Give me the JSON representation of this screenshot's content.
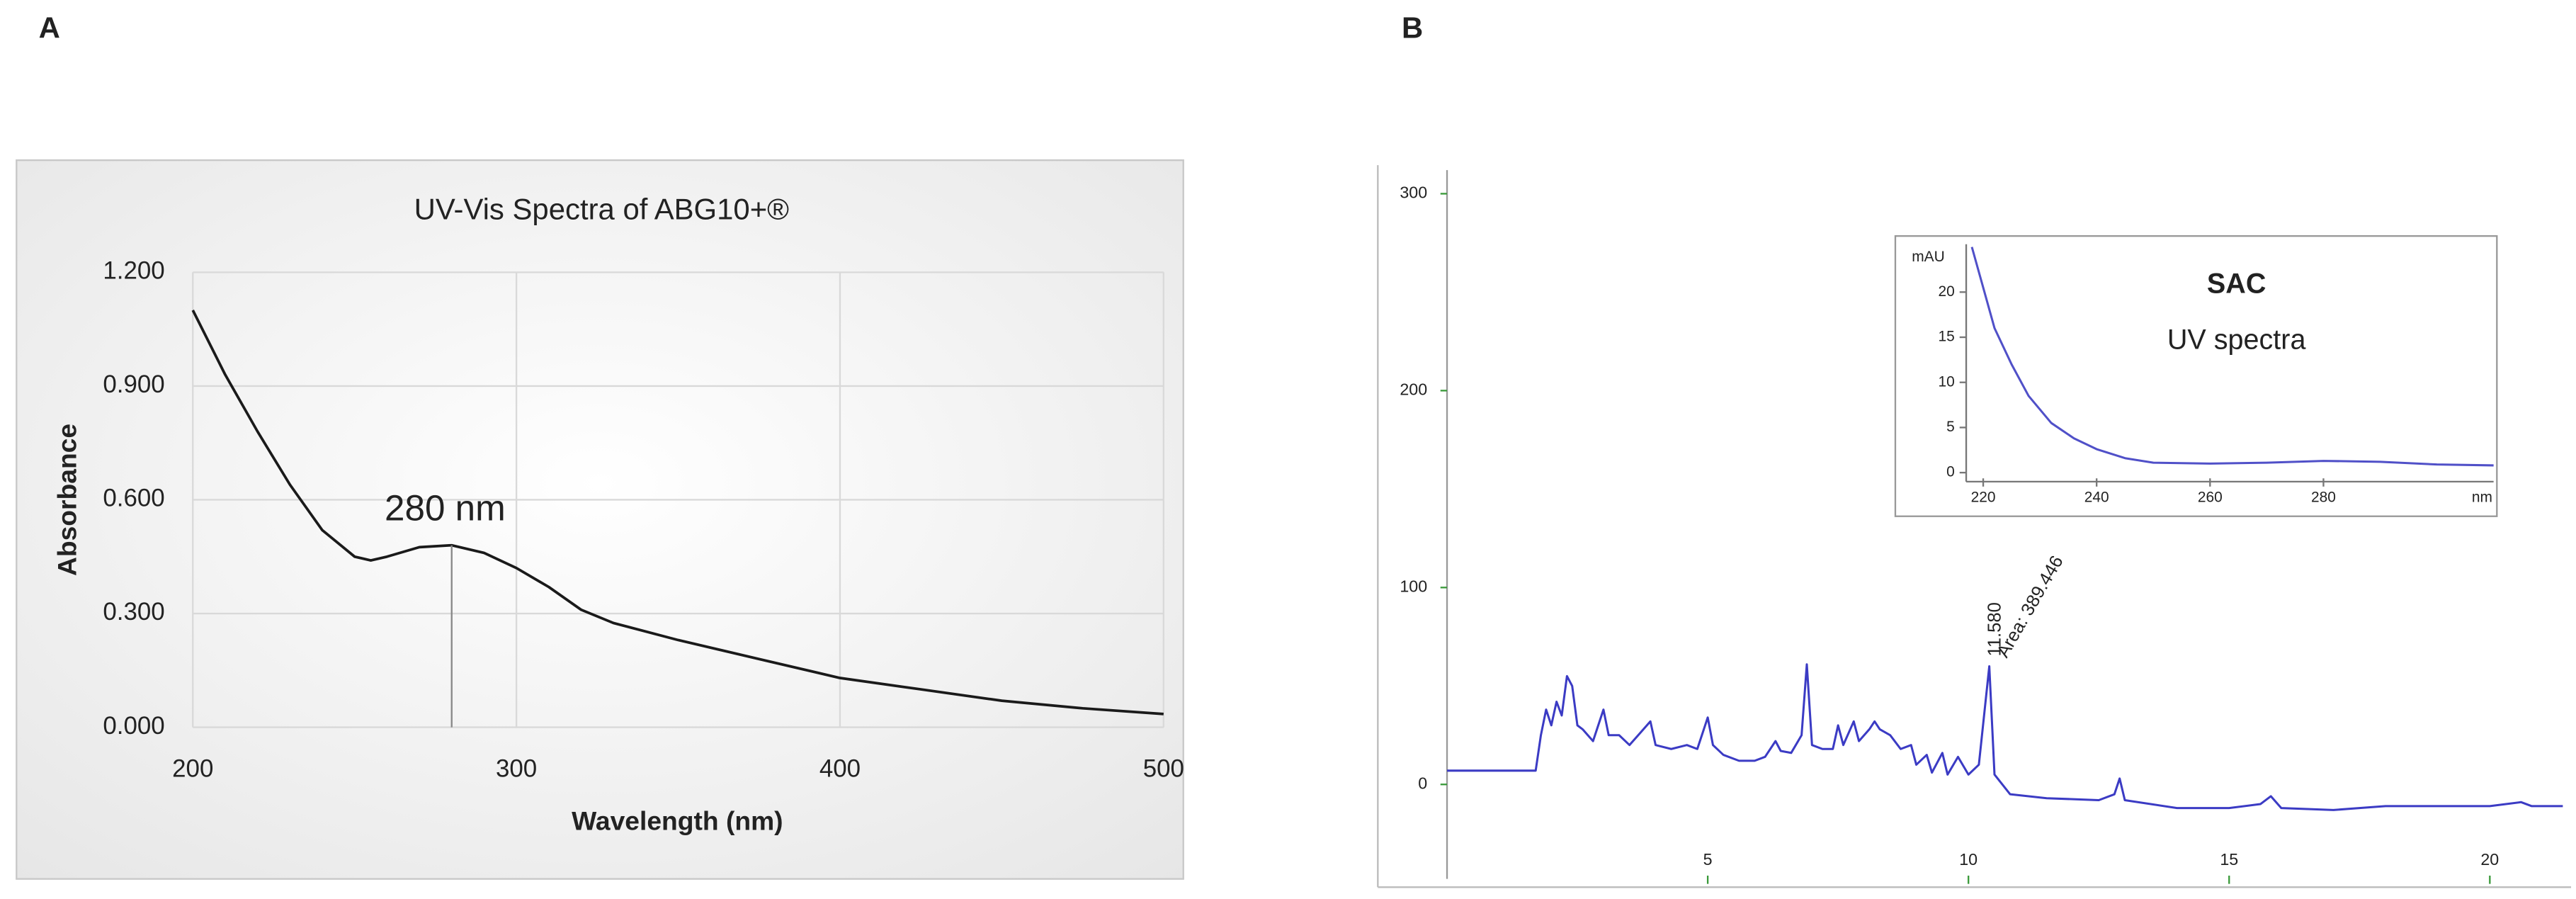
{
  "chart_data": [
    {
      "type": "line",
      "panel_label": "A",
      "title": "UV-Vis Spectra of ABG10+®",
      "x_label": "Wavelength (nm)",
      "y_label": "Absorbance",
      "x": [
        200,
        210,
        220,
        230,
        240,
        250,
        255,
        260,
        270,
        280,
        290,
        300,
        310,
        320,
        330,
        350,
        375,
        400,
        425,
        450,
        475,
        500
      ],
      "series": [
        {
          "color": "#1a1a1a",
          "values": [
            1.1,
            0.93,
            0.78,
            0.64,
            0.52,
            0.45,
            0.44,
            0.45,
            0.475,
            0.48,
            0.46,
            0.42,
            0.37,
            0.31,
            0.275,
            0.23,
            0.18,
            0.13,
            0.1,
            0.07,
            0.05,
            0.035
          ]
        }
      ],
      "xlim": [
        200,
        500
      ],
      "ylim": [
        0,
        1.2
      ],
      "xticks": [
        200,
        300,
        400,
        500
      ],
      "yticks": [
        {
          "value": 0,
          "label": "0.000"
        },
        {
          "value": 0.3,
          "label": "0.300"
        },
        {
          "value": 0.6,
          "label": "0.600"
        },
        {
          "value": 0.9,
          "label": "0.900"
        },
        {
          "value": 1.2,
          "label": "1.200"
        }
      ],
      "grid": true,
      "annotation": {
        "text": "280 nm",
        "x": 280
      }
    },
    {
      "type": "line",
      "panel_label": "B",
      "x": [
        0,
        1.7,
        1.8,
        1.9,
        2.0,
        2.1,
        2.2,
        2.3,
        2.4,
        2.5,
        2.6,
        2.8,
        3.0,
        3.1,
        3.3,
        3.5,
        3.7,
        3.9,
        4.0,
        4.3,
        4.6,
        4.8,
        5.0,
        5.1,
        5.3,
        5.6,
        5.9,
        6.1,
        6.3,
        6.4,
        6.6,
        6.8,
        6.9,
        7.0,
        7.2,
        7.4,
        7.5,
        7.6,
        7.8,
        7.9,
        8.1,
        8.2,
        8.3,
        8.5,
        8.7,
        8.9,
        9.0,
        9.2,
        9.3,
        9.5,
        9.6,
        9.8,
        10.0,
        10.2,
        10.4,
        10.5,
        10.8,
        11.5,
        12.5,
        12.8,
        12.9,
        13.0,
        14,
        15,
        15.6,
        15.8,
        16,
        17,
        18,
        19,
        20,
        20.6,
        20.8,
        21.4
      ],
      "series": [
        {
          "color": "#3b3bc4",
          "values": [
            7,
            7,
            25,
            38,
            30,
            42,
            35,
            55,
            50,
            30,
            28,
            22,
            38,
            25,
            25,
            20,
            26,
            32,
            20,
            18,
            20,
            18,
            34,
            20,
            15,
            12,
            12,
            14,
            22,
            17,
            16,
            25,
            61,
            20,
            18,
            18,
            30,
            20,
            32,
            22,
            28,
            32,
            28,
            25,
            18,
            20,
            10,
            15,
            6,
            16,
            5,
            14,
            5,
            10,
            60,
            5,
            -5,
            -7,
            -8,
            -5,
            3,
            -8,
            -12,
            -12,
            -10,
            -6,
            -12,
            -13,
            -11,
            -11,
            -11,
            -9,
            -11,
            -11
          ]
        }
      ],
      "xlim": [
        0,
        21.4
      ],
      "ylim": [
        -48,
        312
      ],
      "xticks": [
        5,
        10,
        15,
        20
      ],
      "yticks": [
        0,
        100,
        200,
        300
      ],
      "annotations": [
        {
          "text": "11.580",
          "x": 10.4
        },
        {
          "text": "Area: 389.446",
          "x": 10.4
        }
      ]
    },
    {
      "type": "line",
      "title": "SAC",
      "subtitle": "UV spectra",
      "x_label": "nm",
      "y_label": "mAU",
      "x": [
        218,
        220,
        222,
        225,
        228,
        232,
        236,
        240,
        245,
        250,
        260,
        270,
        280,
        290,
        300,
        310
      ],
      "series": [
        {
          "color": "#5050c8",
          "values": [
            25,
            20.5,
            16,
            12,
            8.5,
            5.5,
            3.8,
            2.6,
            1.6,
            1.1,
            1.0,
            1.1,
            1.3,
            1.2,
            0.9,
            0.8
          ]
        }
      ],
      "xlim": [
        217,
        310
      ],
      "ylim": [
        -1,
        25.3
      ],
      "xticks": [
        220,
        240,
        260,
        280
      ],
      "yticks": [
        0,
        5,
        10,
        15,
        20
      ]
    }
  ]
}
